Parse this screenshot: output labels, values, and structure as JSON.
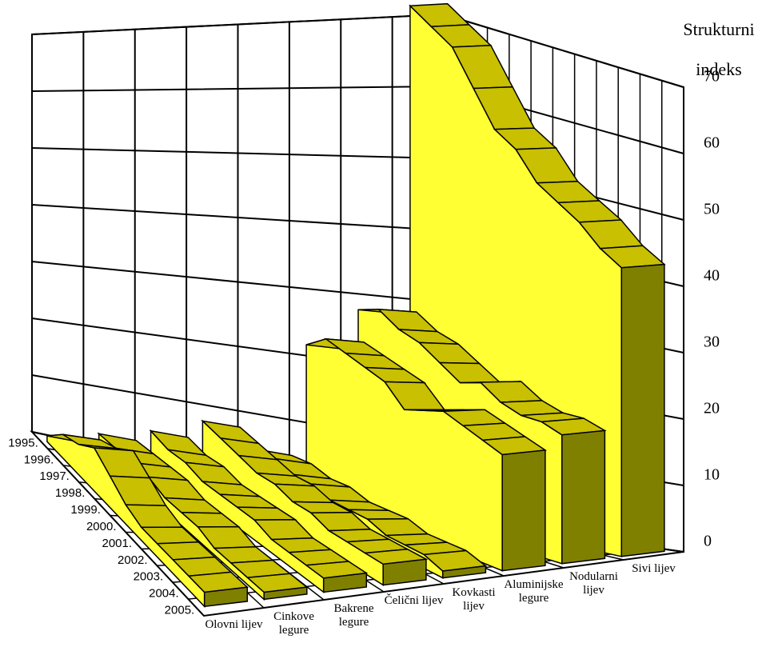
{
  "chart_data": {
    "type": "ribbon3d",
    "y_axis_label": "Strukturni indeks",
    "x": [
      "1995.",
      "1996.",
      "1997.",
      "1998.",
      "1999.",
      "2000.",
      "2001.",
      "2002.",
      "2003.",
      "2004.",
      "2005."
    ],
    "series": [
      {
        "name": "Olovni lijev",
        "values": [
          1,
          4,
          5,
          7,
          5,
          3,
          2,
          2,
          2,
          2,
          2
        ]
      },
      {
        "name": "Cinkove legure",
        "values": [
          3,
          3,
          3,
          3,
          2,
          2,
          2,
          1,
          1,
          1,
          1
        ]
      },
      {
        "name": "Bakrene legure",
        "values": [
          5,
          4,
          4,
          3,
          3,
          3,
          3,
          2,
          2,
          2,
          2
        ]
      },
      {
        "name": "Čelični lijev",
        "values": [
          8,
          7,
          6,
          5,
          5,
          4,
          4,
          3,
          3,
          3,
          3
        ]
      },
      {
        "name": "Kovkasti lijev",
        "values": [
          5,
          5,
          4,
          4,
          3,
          3,
          3,
          2,
          2,
          2,
          1
        ]
      },
      {
        "name": "Aluminijske legure",
        "values": [
          22,
          24,
          23,
          22,
          21,
          18,
          19,
          20,
          19,
          18,
          17
        ]
      },
      {
        "name": "Nodularni lijev",
        "values": [
          28,
          29,
          27,
          26,
          24,
          22,
          23,
          21,
          20,
          20,
          19
        ]
      },
      {
        "name": "Sivi lijev",
        "values": [
          72,
          70,
          68,
          63,
          58,
          56,
          52,
          50,
          48,
          45,
          43
        ]
      }
    ],
    "ylim": [
      0,
      70
    ],
    "yticks": [
      0,
      10,
      20,
      30,
      40,
      50,
      60,
      70
    ],
    "grid": true,
    "top_color": "#c8c000",
    "side_color": "#ffff33",
    "front_color": "#808000"
  }
}
